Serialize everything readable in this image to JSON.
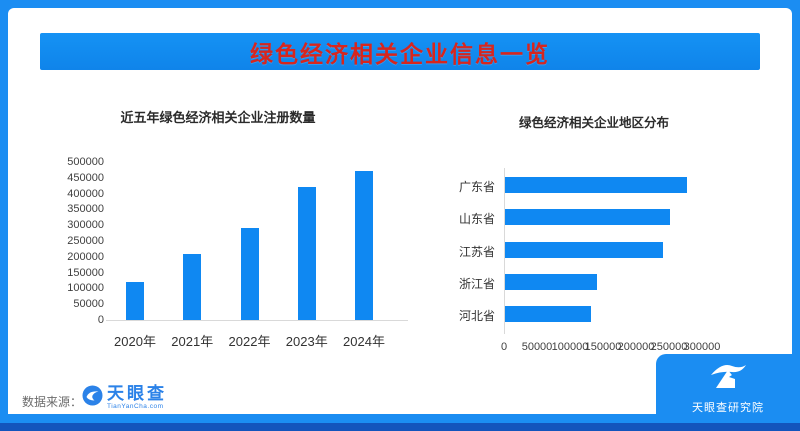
{
  "banner": {
    "title": "绿色经济相关企业信息一览"
  },
  "colors": {
    "frame_blue": "#1b8df2",
    "banner_blue": "#0f84ea",
    "bar_blue": "#0f88f2",
    "title_red": "#d7261e",
    "bottom_strip_navy": "#1354bc"
  },
  "chart_data": [
    {
      "type": "bar",
      "orientation": "vertical",
      "title": "近五年绿色经济相关企业注册数量",
      "categories": [
        "2020年",
        "2021年",
        "2022年",
        "2023年",
        "2024年"
      ],
      "values": [
        120000,
        210000,
        290000,
        420000,
        470000
      ],
      "ylim": [
        0,
        500000
      ],
      "yticks": [
        0,
        50000,
        100000,
        150000,
        200000,
        250000,
        300000,
        350000,
        400000,
        450000,
        500000
      ],
      "grid": false,
      "bar_color": "#0f88f2"
    },
    {
      "type": "bar",
      "orientation": "horizontal",
      "title": "绿色经济相关企业地区分布",
      "categories": [
        "广东省",
        "山东省",
        "江苏省",
        "浙江省",
        "河北省"
      ],
      "values": [
        275000,
        250000,
        240000,
        140000,
        130000
      ],
      "xlim": [
        0,
        300000
      ],
      "xticks": [
        0,
        50000,
        100000,
        150000,
        200000,
        250000,
        300000
      ],
      "grid": false,
      "bar_color": "#0f88f2"
    }
  ],
  "footer": {
    "source_label": "数据来源：",
    "tyc_name": "天眼查",
    "tyc_sub": "TianYanCha.com"
  },
  "corner_logo": {
    "text": "天眼查研究院"
  }
}
